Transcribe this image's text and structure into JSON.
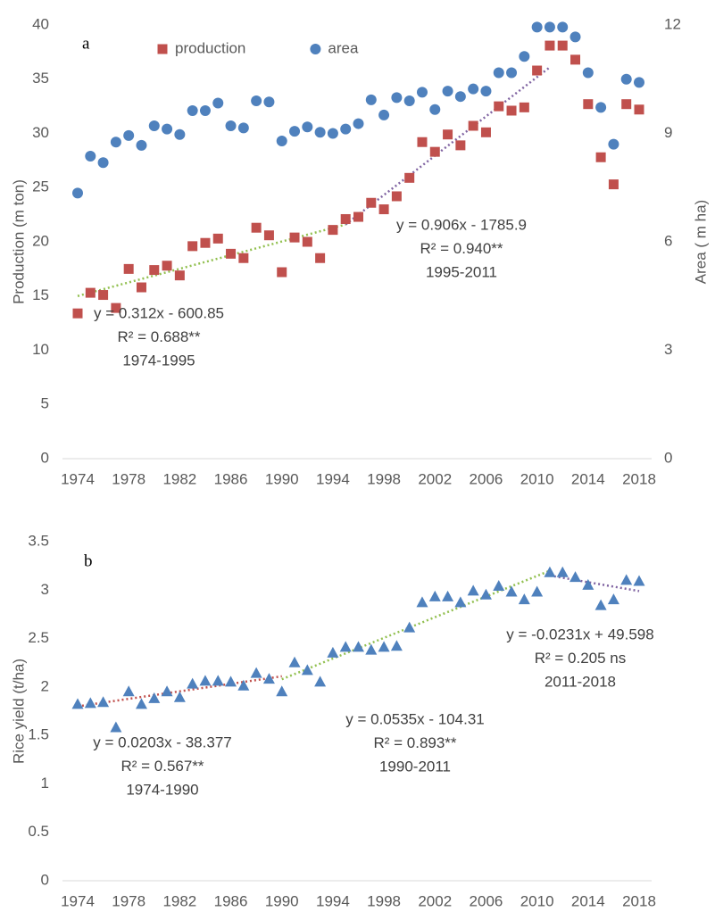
{
  "chart_data": [
    {
      "type": "scatter",
      "panel_label": "a",
      "x": [
        1974,
        1975,
        1976,
        1977,
        1978,
        1979,
        1980,
        1981,
        1982,
        1983,
        1984,
        1985,
        1986,
        1987,
        1988,
        1989,
        1990,
        1991,
        1992,
        1993,
        1994,
        1995,
        1996,
        1997,
        1998,
        1999,
        2000,
        2001,
        2002,
        2003,
        2004,
        2005,
        2006,
        2007,
        2008,
        2009,
        2010,
        2011,
        2012,
        2013,
        2014,
        2015,
        2016,
        2017,
        2018
      ],
      "series": [
        {
          "name": "production",
          "color": "#c0504d",
          "marker": "square",
          "values": [
            13.4,
            15.3,
            15.1,
            13.9,
            17.5,
            15.8,
            17.4,
            17.8,
            16.9,
            19.6,
            19.9,
            20.3,
            18.9,
            18.5,
            21.3,
            20.6,
            17.2,
            20.4,
            20.0,
            18.5,
            21.1,
            22.1,
            22.3,
            23.6,
            23.0,
            24.2,
            25.9,
            29.2,
            28.3,
            29.9,
            28.9,
            30.7,
            30.1,
            32.5,
            32.1,
            32.4,
            35.8,
            38.1,
            38.1,
            36.8,
            32.7,
            27.8,
            25.3,
            32.7,
            32.2
          ]
        },
        {
          "name": "area",
          "color": "#4f81bd",
          "marker": "circle",
          "axis": "y2",
          "values": [
            7.35,
            8.37,
            8.19,
            8.76,
            8.94,
            8.67,
            9.21,
            9.12,
            8.97,
            9.63,
            9.63,
            9.84,
            9.21,
            9.15,
            9.9,
            9.87,
            8.79,
            9.06,
            9.18,
            9.03,
            9.0,
            9.12,
            9.27,
            9.93,
            9.51,
            9.99,
            9.9,
            10.14,
            9.66,
            10.17,
            10.02,
            10.23,
            10.17,
            10.68,
            10.68,
            11.13,
            11.94,
            11.94,
            11.94,
            11.67,
            10.68,
            9.72,
            8.7,
            10.5,
            10.41
          ]
        }
      ],
      "trendlines": [
        {
          "x": [
            1974,
            1995
          ],
          "values": [
            15.0,
            21.6
          ],
          "color": "#92c050"
        },
        {
          "x": [
            1995,
            2011
          ],
          "values": [
            21.6,
            36.1
          ],
          "color": "#8064a2"
        }
      ],
      "annotations": [
        [
          "y = 0.312x - 600.85",
          "R² = 0.688**",
          "1974-1995"
        ],
        [
          "y = 0.906x - 1785.9",
          "R² = 0.940**",
          "1995-2011"
        ]
      ],
      "xlim": [
        1974,
        2018
      ],
      "xticks": [
        1974,
        1978,
        1982,
        1986,
        1990,
        1994,
        1998,
        2002,
        2006,
        2010,
        2014,
        2018
      ],
      "ylim": [
        0,
        40
      ],
      "yticks": [
        0,
        5,
        10,
        15,
        20,
        25,
        30,
        35,
        40
      ],
      "y2lim": [
        0,
        12
      ],
      "y2ticks": [
        0,
        3,
        6,
        9,
        12
      ],
      "ylabel": "Production (m ton)",
      "y2label": "Area ( m ha)",
      "legend": "top",
      "grid": false
    },
    {
      "type": "scatter",
      "panel_label": "b",
      "x": [
        1974,
        1975,
        1976,
        1977,
        1978,
        1979,
        1980,
        1981,
        1982,
        1983,
        1984,
        1985,
        1986,
        1987,
        1988,
        1989,
        1990,
        1991,
        1992,
        1993,
        1994,
        1995,
        1996,
        1997,
        1998,
        1999,
        2000,
        2001,
        2002,
        2003,
        2004,
        2005,
        2006,
        2007,
        2008,
        2009,
        2010,
        2011,
        2012,
        2013,
        2014,
        2015,
        2016,
        2017,
        2018
      ],
      "series": [
        {
          "color": "#4f81bd",
          "marker": "triangle",
          "values": [
            1.82,
            1.83,
            1.84,
            1.58,
            1.95,
            1.82,
            1.88,
            1.95,
            1.89,
            2.03,
            2.06,
            2.06,
            2.05,
            2.01,
            2.14,
            2.08,
            1.95,
            2.25,
            2.17,
            2.05,
            2.35,
            2.41,
            2.41,
            2.38,
            2.41,
            2.42,
            2.61,
            2.87,
            2.93,
            2.93,
            2.87,
            2.99,
            2.95,
            3.04,
            2.98,
            2.9,
            2.98,
            3.18,
            3.18,
            3.13,
            3.05,
            2.84,
            2.9,
            3.1,
            3.09
          ]
        }
      ],
      "trendlines": [
        {
          "x": [
            1974,
            1990
          ],
          "values": [
            1.8,
            2.11
          ],
          "color": "#c0504d"
        },
        {
          "x": [
            1990,
            2011
          ],
          "values": [
            2.08,
            3.2
          ],
          "color": "#92c050"
        },
        {
          "x": [
            2011,
            2018
          ],
          "values": [
            3.15,
            2.99
          ],
          "color": "#8064a2"
        }
      ],
      "annotations": [
        [
          "y = 0.0203x - 38.377",
          "R² = 0.567**",
          "1974-1990"
        ],
        [
          "y = 0.0535x - 104.31",
          "R² = 0.893**",
          "1990-2011"
        ],
        [
          "y = -0.0231x + 49.598",
          "R² = 0.205 ns",
          "2011-2018"
        ]
      ],
      "xlim": [
        1974,
        2018
      ],
      "xticks": [
        1974,
        1978,
        1982,
        1986,
        1990,
        1994,
        1998,
        2002,
        2006,
        2010,
        2014,
        2018
      ],
      "ylim": [
        0,
        3.5
      ],
      "yticks": [
        0,
        0.5,
        1,
        1.5,
        2,
        2.5,
        3,
        3.5
      ],
      "ylabel": "Rice yield (t/ha)",
      "grid": false
    }
  ]
}
